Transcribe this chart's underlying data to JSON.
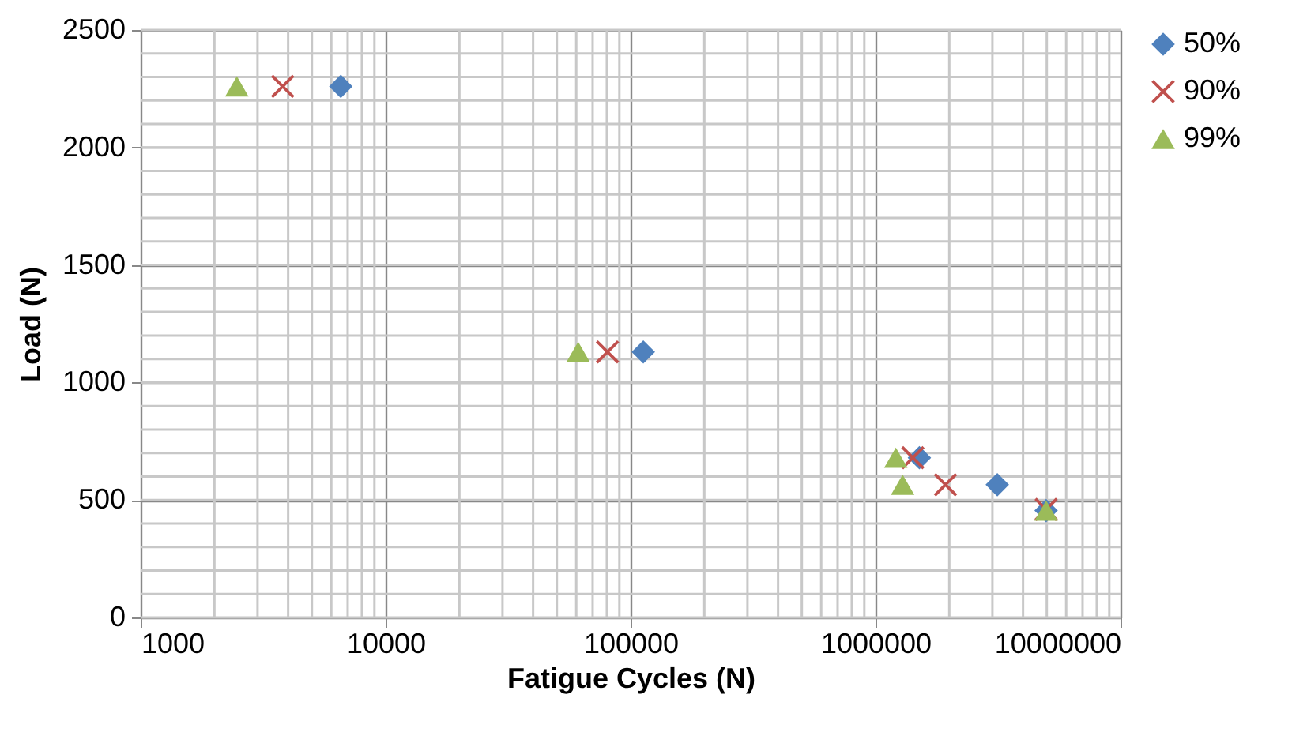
{
  "chart_data": {
    "type": "scatter",
    "xlabel": "Fatigue Cycles (N)",
    "ylabel": "Load (N)",
    "log": "x",
    "xlim": [
      1000,
      10000000
    ],
    "xticks": [
      1000,
      10000,
      100000,
      1000000,
      10000000
    ],
    "ylim": [
      0,
      2500
    ],
    "yticks": [
      0,
      500,
      1000,
      1500,
      2000,
      2500
    ],
    "grid": true,
    "legend": "right",
    "series": [
      {
        "name": "50%",
        "color": "#4f81bd",
        "marker": "diamond",
        "x": [
          6560,
          112700,
          1510000,
          3140000,
          4970000
        ],
        "values": [
          2260,
          1130,
          680,
          565,
          455
        ]
      },
      {
        "name": "90%",
        "color": "#c0504d",
        "marker": "cross",
        "x": [
          3800,
          80500,
          1420000,
          1930000,
          4970000
        ],
        "values": [
          2260,
          1130,
          680,
          565,
          460
        ]
      },
      {
        "name": "99%",
        "color": "#9bbb59",
        "marker": "triangle",
        "x": [
          2470,
          61100,
          1210000,
          1290000,
          4970000
        ],
        "values": [
          2260,
          1130,
          680,
          565,
          455
        ]
      }
    ]
  }
}
